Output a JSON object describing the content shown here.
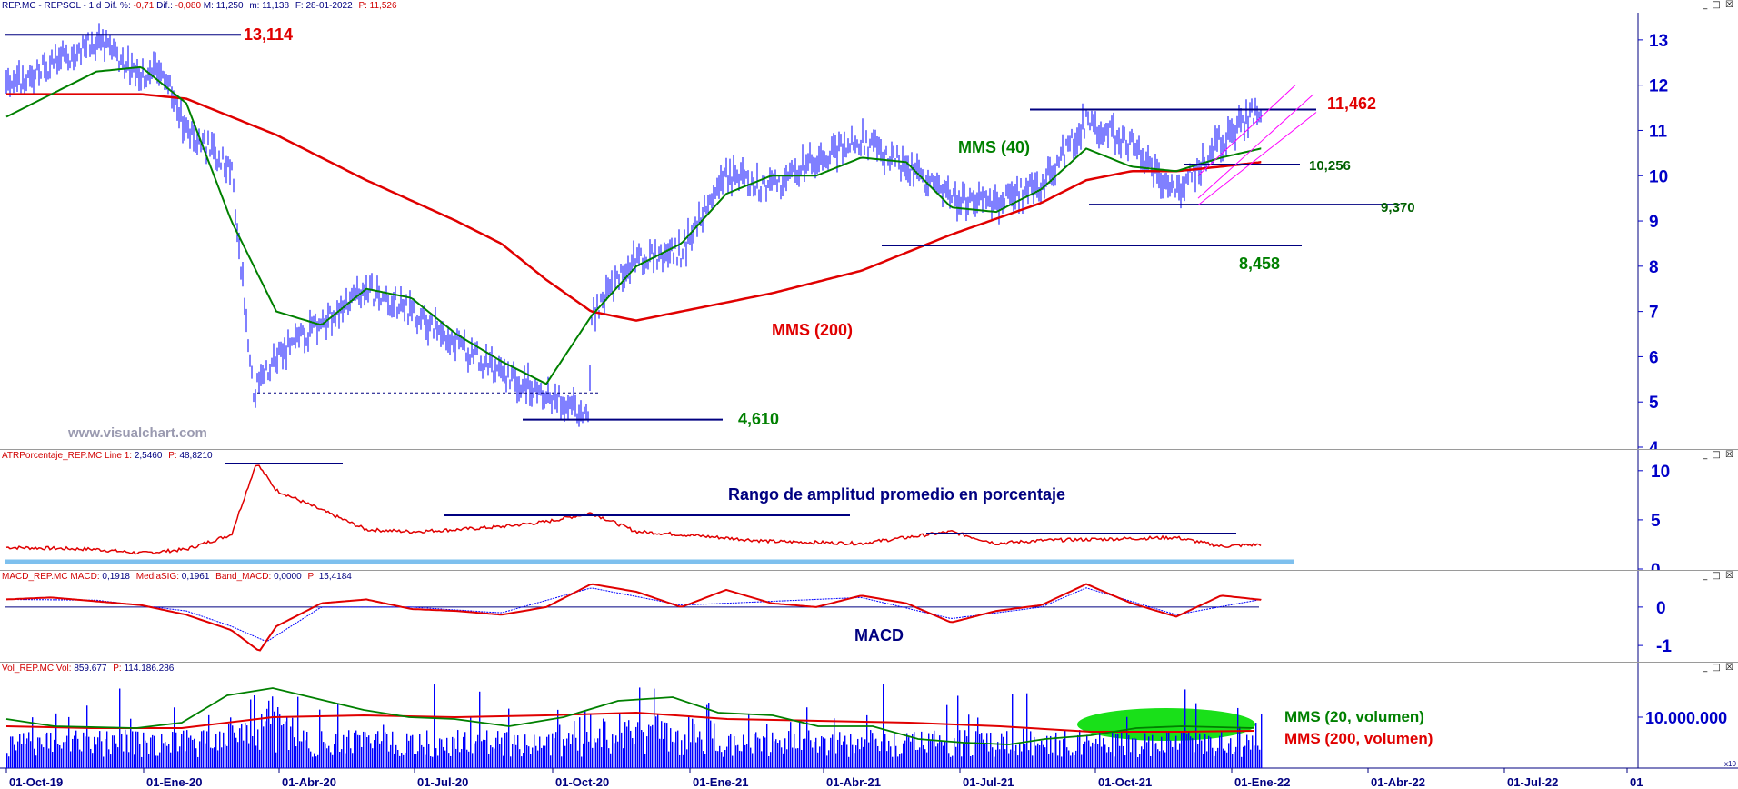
{
  "header": {
    "symbol": "REP.MC - REPSOL -",
    "timeframe": "1 d",
    "dif_pct_label": "Dif. %:",
    "dif_pct_value": "-0,71",
    "dif_label": "Dif.:",
    "dif_value": "-0,080",
    "max_label": "M:",
    "max_value": "11,250",
    "min_label": "m:",
    "min_value": "11,138",
    "date_label": "F:",
    "date_value": "28-01-2022",
    "price_label": "P:",
    "price_value": "11,526"
  },
  "window_buttons": "_ □ ☒",
  "watermark": "www.visualchart.com",
  "panels": {
    "atr": {
      "header": "ATRPorcentaje_REP.MC Line 1:",
      "v1": "2,5460",
      "p_label": "P:",
      "p": "48,8210",
      "title": "Rango de amplitud promedio en porcentaje"
    },
    "macd": {
      "header": "MACD_REP.MC MACD:",
      "v1": "0,1918",
      "sig_label": "MediaSIG:",
      "sig": "0,1961",
      "band_label": "Band_MACD:",
      "band": "0,0000",
      "p_label": "P:",
      "p": "15,4184",
      "title": "MACD"
    },
    "vol": {
      "header": "Vol_REP.MC Vol:",
      "v1": "859.677",
      "p_label": "P:",
      "p": "114.186.286",
      "legend_20": "MMS (20, volumen)",
      "legend_200": "MMS (200, volumen)",
      "scale_note": "x10"
    }
  },
  "annotations": {
    "high_2019": "13,114",
    "resist": "11,462",
    "support_short": "10,256",
    "support_mid": "9,370",
    "support_low": "8,458",
    "low_2020": "4,610",
    "mms40": "MMS (40)",
    "mms200": "MMS (200)"
  },
  "colors": {
    "price": "#0000ff",
    "mms40": "#008000",
    "mms200": "#e00000",
    "atr": "#e00000",
    "macd": "#e00000",
    "signal": "#0000ff",
    "volume": "#0000ff",
    "axis": "#0000c8",
    "channel": "#ff00ff",
    "cloud": "#00dd00"
  },
  "chart_data": [
    {
      "type": "line",
      "title": "REP.MC - REPSOL - 1 d",
      "x_ticks": [
        "01-Oct-19",
        "01-Ene-20",
        "01-Abr-20",
        "01-Jul-20",
        "01-Oct-20",
        "01-Ene-21",
        "01-Abr-21",
        "01-Jul-21",
        "01-Oct-21",
        "01-Ene-22",
        "01-Abr-22",
        "01-Jul-22",
        "01"
      ],
      "y_ticks": [
        4,
        5,
        6,
        7,
        8,
        9,
        10,
        11,
        12,
        13
      ],
      "ylim": [
        4.0,
        13.6
      ],
      "series": [
        {
          "name": "",
          "x": [
            "01-Oct-19",
            "01-Dic-19",
            "01-Ene-20",
            "15-Ene-20",
            "01-Feb-20",
            "01-Mar-20",
            "16-Mar-20",
            "01-Abr-20",
            "01-May-20",
            "01-Jun-20",
            "01-Jul-20",
            "01-Ago-20",
            "01-Sep-20",
            "01-Oct-20",
            "30-Oct-20",
            "01-Nov-20",
            "01-Dic-20",
            "01-Ene-21",
            "01-Feb-21",
            "01-Mar-21",
            "01-Abr-21",
            "01-May-21",
            "01-Jun-21",
            "01-Jul-21",
            "01-Ago-21",
            "01-Sep-21",
            "01-Oct-21",
            "01-Nov-21",
            "01-Dic-21",
            "01-Ene-22",
            "28-Ene-22"
          ],
          "values": [
            11.9,
            13.0,
            12.2,
            12.4,
            11.0,
            10.2,
            5.2,
            6.0,
            6.7,
            7.5,
            7.0,
            6.3,
            5.6,
            5.2,
            4.7,
            6.9,
            8.2,
            8.3,
            10.0,
            9.7,
            10.4,
            10.8,
            10.2,
            9.5,
            9.4,
            9.8,
            11.2,
            10.7,
            9.6,
            10.8,
            11.5
          ]
        },
        {
          "name": "MMS (40)",
          "x": [
            "01-Oct-19",
            "01-Dic-19",
            "01-Ene-20",
            "01-Feb-20",
            "01-Mar-20",
            "01-Abr-20",
            "01-May-20",
            "01-Jun-20",
            "01-Jul-20",
            "01-Ago-20",
            "01-Sep-20",
            "01-Oct-20",
            "01-Nov-20",
            "01-Dic-20",
            "01-Ene-21",
            "01-Feb-21",
            "01-Mar-21",
            "01-Abr-21",
            "01-May-21",
            "01-Jun-21",
            "01-Jul-21",
            "01-Ago-21",
            "01-Sep-21",
            "01-Oct-21",
            "01-Nov-21",
            "01-Dic-21",
            "01-Ene-22",
            "28-Ene-22"
          ],
          "values": [
            11.3,
            12.3,
            12.4,
            11.6,
            9.0,
            7.0,
            6.7,
            7.5,
            7.3,
            6.5,
            5.9,
            5.4,
            6.9,
            8.0,
            8.5,
            9.6,
            10.0,
            10.0,
            10.4,
            10.3,
            9.3,
            9.2,
            9.7,
            10.6,
            10.2,
            10.1,
            10.4,
            10.6
          ]
        },
        {
          "name": "MMS (200)",
          "x": [
            "01-Oct-19",
            "01-Dic-19",
            "01-Ene-20",
            "01-Feb-20",
            "01-Abr-20",
            "01-Jun-20",
            "01-Ago-20",
            "01-Sep-20",
            "01-Oct-20",
            "01-Nov-20",
            "01-Dic-20",
            "01-Ene-21",
            "01-Mar-21",
            "01-May-21",
            "01-Jul-21",
            "01-Sep-21",
            "01-Oct-21",
            "01-Nov-21",
            "01-Dic-21",
            "01-Ene-22",
            "28-Ene-22"
          ],
          "values": [
            11.8,
            11.8,
            11.8,
            11.7,
            10.9,
            9.9,
            9.0,
            8.5,
            7.7,
            7.0,
            6.8,
            7.0,
            7.4,
            7.9,
            8.7,
            9.4,
            9.9,
            10.1,
            10.1,
            10.2,
            10.3
          ]
        }
      ],
      "annotations": [
        "13,114",
        "11,462",
        "10,256",
        "9,370",
        "8,458",
        "4,610",
        "MMS (40)",
        "MMS (200)"
      ]
    },
    {
      "type": "line",
      "title": "ATRPorcentaje_REP.MC",
      "y_ticks": [
        0,
        5,
        10
      ],
      "ylim": [
        0,
        11
      ],
      "series": [
        {
          "name": "Line 1",
          "x": [
            "01-Oct-19",
            "01-Dic-19",
            "01-Ene-20",
            "01-Feb-20",
            "01-Mar-20",
            "18-Mar-20",
            "01-Abr-20",
            "01-May-20",
            "01-Jun-20",
            "01-Jul-20",
            "01-Ago-20",
            "01-Sep-20",
            "01-Oct-20",
            "01-Nov-20",
            "01-Dic-20",
            "01-Ene-21",
            "01-Mar-21",
            "01-May-21",
            "01-Jul-21",
            "01-Ago-21",
            "01-Sep-21",
            "01-Oct-21",
            "01-Dic-21",
            "01-Ene-22",
            "28-Ene-22"
          ],
          "values": [
            2.2,
            2.0,
            1.6,
            2.0,
            3.5,
            10.8,
            8.0,
            6.0,
            4.0,
            3.8,
            4.0,
            4.3,
            4.8,
            5.7,
            3.8,
            3.5,
            2.8,
            2.6,
            3.8,
            2.6,
            2.9,
            3.0,
            3.2,
            2.3,
            2.5
          ]
        }
      ]
    },
    {
      "type": "line",
      "title": "MACD_REP.MC",
      "y_ticks": [
        -1,
        0
      ],
      "ylim": [
        -1.4,
        0.85
      ],
      "series": [
        {
          "name": "MACD",
          "x": [
            "01-Oct-19",
            "01-Nov-19",
            "01-Dic-19",
            "01-Ene-20",
            "01-Feb-20",
            "01-Mar-20",
            "20-Mar-20",
            "01-Abr-20",
            "01-May-20",
            "01-Jun-20",
            "01-Jul-20",
            "01-Ago-20",
            "01-Sep-20",
            "01-Oct-20",
            "01-Nov-20",
            "01-Dic-20",
            "01-Ene-21",
            "01-Feb-21",
            "01-Mar-21",
            "01-Abr-21",
            "01-May-21",
            "01-Jun-21",
            "01-Jul-21",
            "01-Ago-21",
            "01-Sep-21",
            "01-Oct-21",
            "01-Nov-21",
            "01-Dic-21",
            "01-Ene-22",
            "28-Ene-22"
          ],
          "values": [
            0.2,
            0.25,
            0.15,
            0.05,
            -0.2,
            -0.6,
            -1.15,
            -0.5,
            0.1,
            0.2,
            -0.05,
            -0.1,
            -0.2,
            0.0,
            0.6,
            0.4,
            0.0,
            0.45,
            0.1,
            0.0,
            0.3,
            0.1,
            -0.4,
            -0.1,
            0.05,
            0.6,
            0.1,
            -0.25,
            0.3,
            0.19
          ]
        },
        {
          "name": "MediaSIG",
          "x": [
            "01-Oct-19",
            "01-Dic-19",
            "01-Feb-20",
            "01-Mar-20",
            "25-Mar-20",
            "01-May-20",
            "01-Jul-20",
            "01-Sep-20",
            "01-Nov-20",
            "01-Ene-21",
            "01-Mar-21",
            "01-May-21",
            "01-Jul-21",
            "01-Sep-21",
            "01-Oct-21",
            "01-Dic-21",
            "28-Ene-22"
          ],
          "values": [
            0.2,
            0.18,
            -0.1,
            -0.5,
            -0.9,
            0.0,
            0.0,
            -0.15,
            0.5,
            0.05,
            0.15,
            0.25,
            -0.3,
            0.0,
            0.5,
            -0.2,
            0.2
          ]
        }
      ]
    },
    {
      "type": "bar",
      "title": "Vol_REP.MC",
      "y_ticks": [
        "10.000.000"
      ],
      "series": [
        {
          "name": "Vol",
          "note": "daily volume bars"
        },
        {
          "name": "MMS (20, volumen)"
        },
        {
          "name": "MMS (200, volumen)"
        }
      ]
    }
  ]
}
